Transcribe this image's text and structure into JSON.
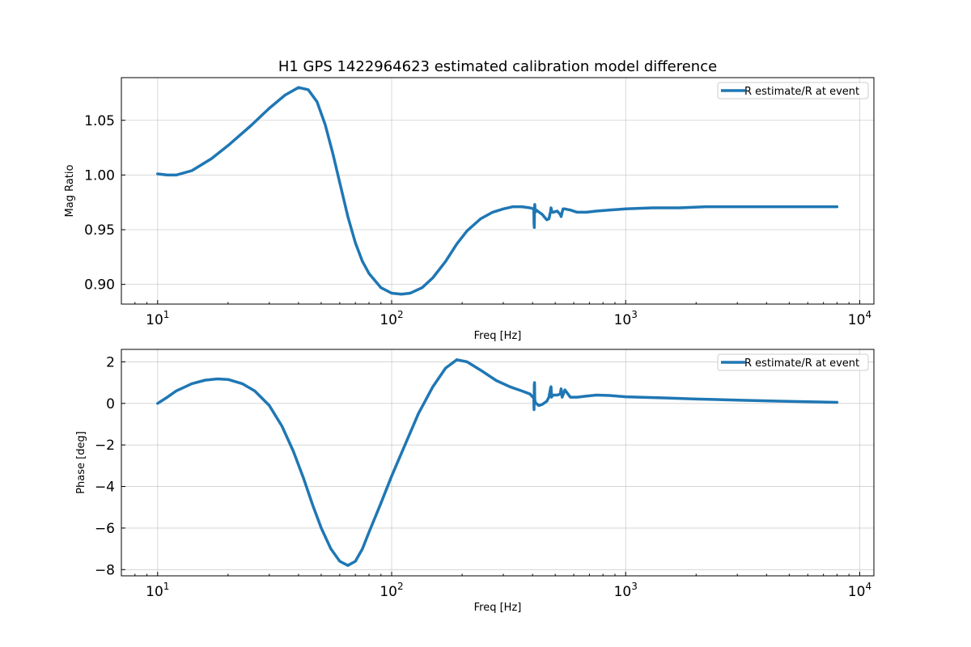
{
  "figure": {
    "title": "H1 GPS 1422964623 estimated calibration model difference"
  },
  "colors": {
    "series": "#1f77b4"
  },
  "chart_data": [
    {
      "type": "line",
      "xscale": "log",
      "xlabel": "Freq [Hz]",
      "ylabel": "Mag Ratio",
      "xlim": [
        7,
        11500
      ],
      "ylim": [
        0.882,
        1.089
      ],
      "xticks": [
        10,
        100,
        1000,
        10000
      ],
      "xtick_labels": [
        {
          "base": "10",
          "exp": "1"
        },
        {
          "base": "10",
          "exp": "2"
        },
        {
          "base": "10",
          "exp": "3"
        },
        {
          "base": "10",
          "exp": "4"
        }
      ],
      "yticks": [
        0.9,
        0.95,
        1.0,
        1.05
      ],
      "ytick_labels": [
        "0.90",
        "0.95",
        "1.00",
        "1.05"
      ],
      "grid": true,
      "legend": "top-right",
      "series": [
        {
          "name": "R estimate/R at event",
          "x": [
            10,
            11,
            12,
            14,
            17,
            20,
            25,
            30,
            35,
            40,
            44,
            48,
            52,
            56,
            60,
            65,
            70,
            75,
            80,
            90,
            100,
            110,
            120,
            135,
            150,
            170,
            190,
            210,
            240,
            270,
            300,
            330,
            360,
            390,
            405,
            406,
            407,
            408,
            409,
            410,
            411,
            412,
            413,
            415,
            420,
            440,
            460,
            470,
            478,
            480,
            482,
            485,
            490,
            510,
            525,
            530,
            535,
            540,
            550,
            580,
            620,
            680,
            750,
            850,
            1000,
            1300,
            1700,
            2200,
            3000,
            4000,
            5000,
            6500,
            8000
          ],
          "values": [
            1.001,
            1.0,
            1.0,
            1.004,
            1.015,
            1.027,
            1.045,
            1.061,
            1.073,
            1.08,
            1.078,
            1.067,
            1.046,
            1.02,
            0.993,
            0.962,
            0.938,
            0.921,
            0.91,
            0.897,
            0.892,
            0.891,
            0.892,
            0.897,
            0.906,
            0.921,
            0.937,
            0.949,
            0.96,
            0.966,
            0.969,
            0.971,
            0.971,
            0.97,
            0.969,
            0.955,
            0.952,
            0.97,
            0.973,
            0.969,
            0.966,
            0.967,
            0.968,
            0.968,
            0.967,
            0.964,
            0.959,
            0.96,
            0.967,
            0.97,
            0.968,
            0.966,
            0.966,
            0.967,
            0.964,
            0.962,
            0.966,
            0.969,
            0.969,
            0.968,
            0.966,
            0.966,
            0.967,
            0.968,
            0.969,
            0.97,
            0.97,
            0.971,
            0.971,
            0.971,
            0.971,
            0.971,
            0.971
          ]
        }
      ]
    },
    {
      "type": "line",
      "xscale": "log",
      "xlabel": "Freq [Hz]",
      "ylabel": "Phase [deg]",
      "xlim": [
        7,
        11500
      ],
      "ylim": [
        -8.3,
        2.6
      ],
      "xticks": [
        10,
        100,
        1000,
        10000
      ],
      "xtick_labels": [
        {
          "base": "10",
          "exp": "1"
        },
        {
          "base": "10",
          "exp": "2"
        },
        {
          "base": "10",
          "exp": "3"
        },
        {
          "base": "10",
          "exp": "4"
        }
      ],
      "yticks": [
        2,
        0,
        -2,
        -4,
        -6,
        -8
      ],
      "ytick_labels": [
        "2",
        "0",
        "−2",
        "−4",
        "−6",
        "−8"
      ],
      "grid": true,
      "legend": "top-right",
      "series": [
        {
          "name": "R estimate/R at event",
          "x": [
            10,
            11,
            12,
            14,
            16,
            18,
            20,
            23,
            26,
            30,
            34,
            38,
            42,
            46,
            50,
            55,
            60,
            65,
            70,
            75,
            80,
            90,
            100,
            115,
            130,
            150,
            170,
            190,
            210,
            240,
            280,
            320,
            360,
            390,
            405,
            406,
            407,
            408,
            409,
            410,
            411,
            415,
            425,
            440,
            460,
            470,
            478,
            480,
            482,
            485,
            490,
            510,
            525,
            530,
            535,
            540,
            550,
            580,
            620,
            680,
            750,
            850,
            1000,
            1500,
            2000,
            3000,
            4500,
            6000,
            8000
          ],
          "values": [
            0.0,
            0.3,
            0.6,
            0.95,
            1.12,
            1.18,
            1.15,
            0.95,
            0.6,
            -0.1,
            -1.1,
            -2.3,
            -3.6,
            -4.9,
            -6.0,
            -7.0,
            -7.6,
            -7.8,
            -7.6,
            -7.0,
            -6.2,
            -4.8,
            -3.5,
            -1.9,
            -0.5,
            0.8,
            1.7,
            2.1,
            2.0,
            1.6,
            1.1,
            0.8,
            0.6,
            0.45,
            0.25,
            -0.3,
            0.9,
            1.0,
            0.2,
            0.1,
            0.05,
            0.0,
            -0.1,
            -0.05,
            0.1,
            0.3,
            0.75,
            0.8,
            0.3,
            0.35,
            0.4,
            0.4,
            0.45,
            0.7,
            0.3,
            0.4,
            0.65,
            0.3,
            0.3,
            0.35,
            0.4,
            0.38,
            0.32,
            0.26,
            0.21,
            0.16,
            0.11,
            0.08,
            0.05
          ]
        }
      ]
    }
  ]
}
